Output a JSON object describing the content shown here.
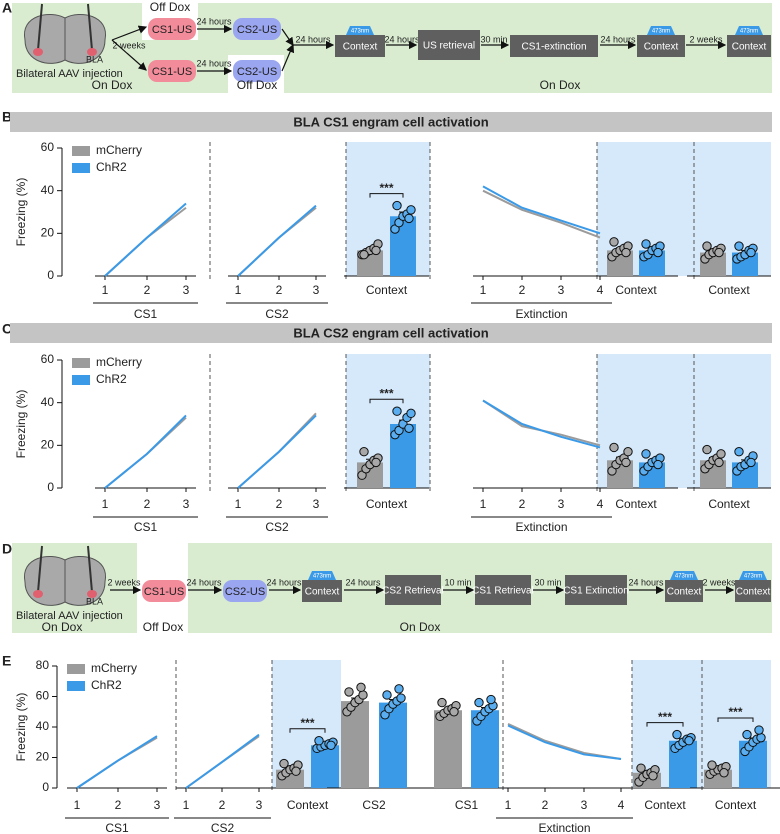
{
  "schematic_a": {
    "label": "A",
    "brain_label": "BLA",
    "injection": "Bilateral AAV injection",
    "items": [
      "Off Dox",
      "CS1-US",
      "24 hours",
      "CS2-US",
      "2 weeks",
      "CS1-US",
      "24 hours",
      "CS2-US",
      "Off Dox",
      "On Dox",
      "24 hours",
      "473nm",
      "Context",
      "24 hours",
      "US retrieval",
      "30 min",
      "CS1-extinction",
      "24 hours",
      "473nm",
      "Context",
      "2 weeks",
      "473nm",
      "Context",
      "On Dox"
    ]
  },
  "schematic_d": {
    "label": "D",
    "brain_label": "BLA",
    "injection": "Bilateral AAV injection",
    "items": [
      "2 weeks",
      "CS1-US",
      "Off Dox",
      "24 hours",
      "CS2-US",
      "24 hours",
      "473nm",
      "Context",
      "24 hours",
      "CS2 Retrieval",
      "10 min",
      "CS1 Retrieval",
      "30 min",
      "CS1 Extinction",
      "24 hours",
      "473nm",
      "Context",
      "2 weeks",
      "473nm",
      "Context",
      "On Dox",
      "On Dox"
    ]
  },
  "chart_data": [
    {
      "type": "panel",
      "label": "B",
      "header": "BLA CS1 engram cell activation",
      "y_label": "Freezing (%)",
      "ylim": [
        0,
        60
      ],
      "yticks": [
        0,
        20,
        40,
        60
      ],
      "legend": [
        {
          "name": "mCherry",
          "color": "#9b9b9b"
        },
        {
          "name": "ChR2",
          "color": "#3a9ae8"
        }
      ],
      "subplots": [
        {
          "type": "line",
          "categories": [
            "1",
            "2",
            "3"
          ],
          "group_label": "CS1",
          "series": [
            {
              "values": [
                0,
                18,
                32
              ]
            },
            {
              "values": [
                0,
                18,
                34
              ]
            }
          ]
        },
        {
          "type": "line",
          "categories": [
            "1",
            "2",
            "3"
          ],
          "group_label": "CS2",
          "series": [
            {
              "values": [
                0,
                18,
                32
              ]
            },
            {
              "values": [
                0,
                18,
                33
              ]
            }
          ]
        },
        {
          "type": "bar",
          "category": "Context",
          "highlight": true,
          "significance": "***",
          "series": [
            {
              "values": [
                12
              ],
              "errors": [
                1.2
              ],
              "points": [
                10,
                11,
                12,
                13,
                15,
                10,
                12
              ]
            },
            {
              "values": [
                28
              ],
              "errors": [
                2
              ],
              "points": [
                22,
                25,
                28,
                29,
                31,
                33,
                27
              ]
            }
          ]
        },
        {
          "type": "line",
          "categories": [
            "1",
            "2",
            "3",
            "4"
          ],
          "group_label": "Extinction",
          "series": [
            {
              "values": [
                40,
                31,
                25,
                18
              ]
            },
            {
              "values": [
                42,
                32,
                26,
                20
              ]
            }
          ]
        },
        {
          "type": "bar",
          "category": "Context",
          "highlight": true,
          "series": [
            {
              "values": [
                12
              ],
              "errors": [
                1.2
              ],
              "points": [
                9,
                11,
                12,
                13,
                14,
                16,
                11
              ]
            },
            {
              "values": [
                12
              ],
              "errors": [
                1.2
              ],
              "points": [
                9,
                10,
                12,
                13,
                14,
                15,
                11
              ]
            }
          ]
        },
        {
          "type": "bar",
          "category": "Context",
          "highlight": true,
          "series": [
            {
              "values": [
                11
              ],
              "errors": [
                1
              ],
              "points": [
                8,
                10,
                11,
                12,
                13,
                14,
                11
              ]
            },
            {
              "values": [
                11
              ],
              "errors": [
                1
              ],
              "points": [
                8,
                9,
                10,
                12,
                13,
                14,
                11
              ]
            }
          ]
        }
      ]
    },
    {
      "type": "panel",
      "label": "C",
      "header": "BLA CS2 engram cell activation",
      "y_label": "Freezing (%)",
      "ylim": [
        0,
        60
      ],
      "yticks": [
        0,
        20,
        40,
        60
      ],
      "legend": [
        {
          "name": "mCherry",
          "color": "#9b9b9b"
        },
        {
          "name": "ChR2",
          "color": "#3a9ae8"
        }
      ],
      "subplots": [
        {
          "type": "line",
          "categories": [
            "1",
            "2",
            "3"
          ],
          "group_label": "CS1",
          "series": [
            {
              "values": [
                0,
                16,
                33
              ]
            },
            {
              "values": [
                0,
                16,
                34
              ]
            }
          ]
        },
        {
          "type": "line",
          "categories": [
            "1",
            "2",
            "3"
          ],
          "group_label": "CS2",
          "series": [
            {
              "values": [
                0,
                17,
                35
              ]
            },
            {
              "values": [
                0,
                17,
                34
              ]
            }
          ]
        },
        {
          "type": "bar",
          "category": "Context",
          "highlight": true,
          "significance": "***",
          "series": [
            {
              "values": [
                12
              ],
              "errors": [
                1.5
              ],
              "points": [
                6,
                9,
                11,
                13,
                14,
                17,
                12
              ]
            },
            {
              "values": [
                30
              ],
              "errors": [
                1.8
              ],
              "points": [
                25,
                27,
                30,
                33,
                35,
                36,
                28
              ]
            }
          ]
        },
        {
          "type": "line",
          "categories": [
            "1",
            "2",
            "3",
            "4"
          ],
          "group_label": "Extinction",
          "series": [
            {
              "values": [
                41,
                29,
                25,
                20
              ]
            },
            {
              "values": [
                41,
                30,
                24,
                19
              ]
            }
          ]
        },
        {
          "type": "bar",
          "category": "Context",
          "highlight": true,
          "series": [
            {
              "values": [
                13
              ],
              "errors": [
                1.5
              ],
              "points": [
                8,
                11,
                13,
                14,
                17,
                19,
                12
              ]
            },
            {
              "values": [
                12
              ],
              "errors": [
                1.2
              ],
              "points": [
                8,
                10,
                12,
                13,
                14,
                16,
                11
              ]
            }
          ]
        },
        {
          "type": "bar",
          "category": "Context",
          "highlight": true,
          "series": [
            {
              "values": [
                13
              ],
              "errors": [
                1.3
              ],
              "points": [
                9,
                11,
                13,
                14,
                16,
                18,
                12
              ]
            },
            {
              "values": [
                12
              ],
              "errors": [
                1.2
              ],
              "points": [
                8,
                10,
                11,
                13,
                15,
                17,
                12
              ]
            }
          ]
        }
      ]
    },
    {
      "type": "panel",
      "label": "E",
      "y_label": "Freezing (%)",
      "ylim": [
        0,
        80
      ],
      "yticks": [
        0,
        20,
        40,
        60,
        80
      ],
      "legend": [
        {
          "name": "mCherry",
          "color": "#9b9b9b"
        },
        {
          "name": "ChR2",
          "color": "#3a9ae8"
        }
      ],
      "subplots": [
        {
          "type": "line",
          "categories": [
            "1",
            "2",
            "3"
          ],
          "group_label": "CS1",
          "series": [
            {
              "values": [
                0,
                18,
                33
              ]
            },
            {
              "values": [
                0,
                18,
                34
              ]
            }
          ]
        },
        {
          "type": "line",
          "categories": [
            "1",
            "2",
            "3"
          ],
          "group_label": "CS2",
          "series": [
            {
              "values": [
                0,
                17,
                34
              ]
            },
            {
              "values": [
                0,
                17,
                35
              ]
            }
          ]
        },
        {
          "type": "bar",
          "category": "Context",
          "highlight": true,
          "significance": "***",
          "series": [
            {
              "values": [
                12
              ],
              "errors": [
                1.3
              ],
              "points": [
                8,
                10,
                12,
                13,
                15,
                16,
                11
              ]
            },
            {
              "values": [
                28
              ],
              "errors": [
                1
              ],
              "points": [
                26,
                27,
                28,
                29,
                30,
                31,
                28
              ]
            }
          ]
        },
        {
          "type": "bar",
          "category": "CS2",
          "series": [
            {
              "values": [
                57
              ],
              "errors": [
                2
              ],
              "points": [
                50,
                53,
                56,
                58,
                61,
                63,
                66
              ]
            },
            {
              "values": [
                56
              ],
              "errors": [
                2
              ],
              "points": [
                48,
                52,
                55,
                57,
                59,
                61,
                65
              ]
            }
          ]
        },
        {
          "type": "bar",
          "category": "CS1",
          "series": [
            {
              "values": [
                51
              ],
              "errors": [
                1.2
              ],
              "points": [
                47,
                49,
                51,
                52,
                54,
                56,
                50
              ]
            },
            {
              "values": [
                51
              ],
              "errors": [
                1.8
              ],
              "points": [
                44,
                47,
                50,
                52,
                54,
                56,
                58
              ]
            }
          ]
        },
        {
          "type": "line",
          "categories": [
            "1",
            "2",
            "3",
            "4"
          ],
          "group_label": "Extinction",
          "series": [
            {
              "values": [
                42,
                31,
                23,
                19
              ]
            },
            {
              "values": [
                41,
                30,
                22,
                19
              ]
            }
          ]
        },
        {
          "type": "bar",
          "category": "Context",
          "highlight": true,
          "significance": "***",
          "series": [
            {
              "values": [
                10
              ],
              "errors": [
                1.3
              ],
              "points": [
                4,
                7,
                9,
                10,
                12,
                13,
                8
              ]
            },
            {
              "values": [
                31
              ],
              "errors": [
                1.2
              ],
              "points": [
                26,
                28,
                30,
                32,
                33,
                35,
                31
              ]
            }
          ]
        },
        {
          "type": "bar",
          "category": "Context",
          "highlight": true,
          "significance": "***",
          "series": [
            {
              "values": [
                12
              ],
              "errors": [
                1
              ],
              "points": [
                9,
                11,
                12,
                13,
                14,
                15,
                10
              ]
            },
            {
              "values": [
                31
              ],
              "errors": [
                1.8
              ],
              "points": [
                24,
                27,
                30,
                32,
                33,
                35,
                38
              ]
            }
          ]
        }
      ]
    }
  ]
}
